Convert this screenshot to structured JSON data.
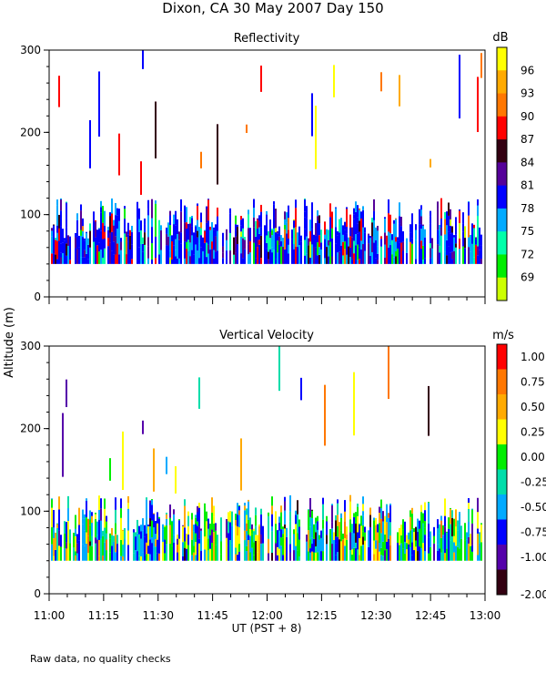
{
  "title": "Dixon, CA 30 May 2007  Day 150",
  "shared_ylabel": "Altitude (m)",
  "xlabel": "UT  (PST + 8)",
  "footnote": "Raw data, no quality checks",
  "x_ticks": [
    "11:00",
    "11:15",
    "11:30",
    "11:45",
    "12:00",
    "12:15",
    "12:30",
    "12:45",
    "13:00"
  ],
  "y_ticks": [
    "0",
    "100",
    "200",
    "300"
  ],
  "chart_data": [
    {
      "type": "heatmap",
      "title": "Reflectivity",
      "colorbar_unit": "dB",
      "colorbar_labels": [
        "96",
        "93",
        "90",
        "87",
        "84",
        "81",
        "78",
        "75",
        "72",
        "69"
      ],
      "colorbar_colors": [
        "#ffff00",
        "#ffaa00",
        "#ff7700",
        "#ff0000",
        "#330011",
        "#550099",
        "#0000ff",
        "#00aaff",
        "#00ffaa",
        "#00ee00",
        "#ccff00"
      ],
      "xlim": [
        "11:00",
        "13:00"
      ],
      "ylim": [
        0,
        300
      ],
      "data_range_m": [
        40,
        300
      ],
      "seed": 11
    },
    {
      "type": "heatmap",
      "title": "Vertical Velocity",
      "colorbar_unit": "m/s",
      "colorbar_labels": [
        "1.00",
        "0.75",
        "0.50",
        "0.25",
        "0.00",
        "-0.25",
        "-0.50",
        "-0.75",
        "-1.00",
        "-2.00"
      ],
      "colorbar_colors": [
        "#ff0000",
        "#ff7700",
        "#ffaa00",
        "#ffff00",
        "#00ee00",
        "#00ddaa",
        "#00aaff",
        "#0000ff",
        "#5500aa",
        "#330011"
      ],
      "xlim": [
        "11:00",
        "13:00"
      ],
      "ylim": [
        0,
        300
      ],
      "data_range_m": [
        40,
        300
      ],
      "seed": 29
    }
  ]
}
